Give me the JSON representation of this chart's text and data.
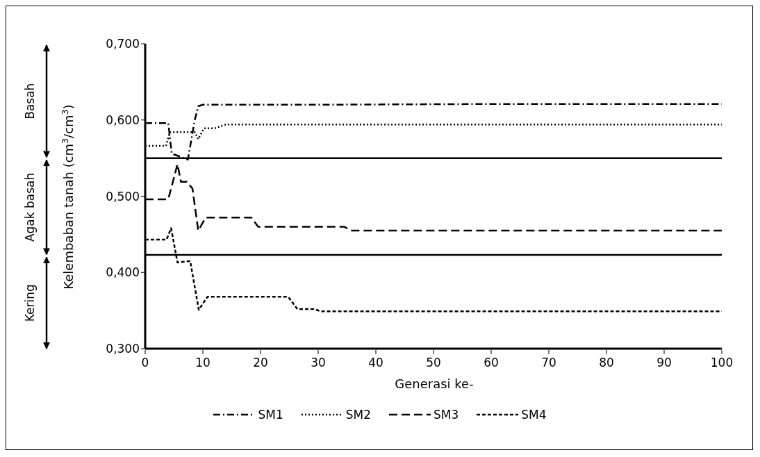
{
  "chart_data": {
    "type": "line",
    "xlabel": "Generasi ke-",
    "ylabel": "Kelembaban tanah (cm$^{3}$/cm$^{3}$)",
    "xlim": [
      0,
      100
    ],
    "xticks": [
      0,
      10,
      20,
      30,
      40,
      50,
      60,
      70,
      80,
      90,
      100
    ],
    "ylim": [
      0.3,
      0.7
    ],
    "yticks": [
      {
        "value": 0.3,
        "label": "0,300"
      },
      {
        "value": 0.4,
        "label": "0,400"
      },
      {
        "value": 0.5,
        "label": "0,500"
      },
      {
        "value": 0.6,
        "label": "0,600"
      },
      {
        "value": 0.7,
        "label": "0,700"
      }
    ],
    "grid": false,
    "legend": "bottom",
    "marker": "none",
    "ref_lines": [
      {
        "axis": "y",
        "value": 0.55,
        "color": "#000000"
      },
      {
        "axis": "y",
        "value": 0.423,
        "color": "#000000"
      }
    ],
    "annotations": [
      "Basah",
      "Agak basah",
      "Kering"
    ],
    "series": [
      {
        "name": "SM1",
        "color": "#000000",
        "line_style": "dashdot",
        "x": [
          0,
          4,
          4.6,
          7.4,
          8.6,
          9.2,
          10,
          30,
          60,
          100
        ],
        "values": [
          0.596,
          0.596,
          0.556,
          0.548,
          0.6,
          0.618,
          0.62,
          0.62,
          0.621,
          0.621
        ]
      },
      {
        "name": "SM2",
        "color": "#000000",
        "line_style": "dotted",
        "x": [
          0,
          3.6,
          4.3,
          8.6,
          9.2,
          10.2,
          12,
          14,
          50,
          100
        ],
        "values": [
          0.566,
          0.566,
          0.584,
          0.584,
          0.575,
          0.589,
          0.589,
          0.594,
          0.594,
          0.594
        ]
      },
      {
        "name": "SM3",
        "color": "#000000",
        "line_style": "dashed",
        "x": [
          0,
          4,
          5.6,
          6.2,
          7.2,
          8.2,
          9.2,
          10.5,
          18.4,
          19.6,
          34.5,
          35.7,
          100
        ],
        "values": [
          0.496,
          0.496,
          0.542,
          0.519,
          0.519,
          0.51,
          0.455,
          0.472,
          0.472,
          0.46,
          0.46,
          0.455,
          0.455
        ]
      },
      {
        "name": "SM4",
        "color": "#000000",
        "line_style": "dashed",
        "x": [
          0,
          3.7,
          4.5,
          5.6,
          7.8,
          9.3,
          10.8,
          24.8,
          26.4,
          29.2,
          30.5,
          100
        ],
        "values": [
          0.443,
          0.443,
          0.458,
          0.413,
          0.415,
          0.351,
          0.368,
          0.368,
          0.352,
          0.352,
          0.349,
          0.349
        ]
      }
    ]
  }
}
